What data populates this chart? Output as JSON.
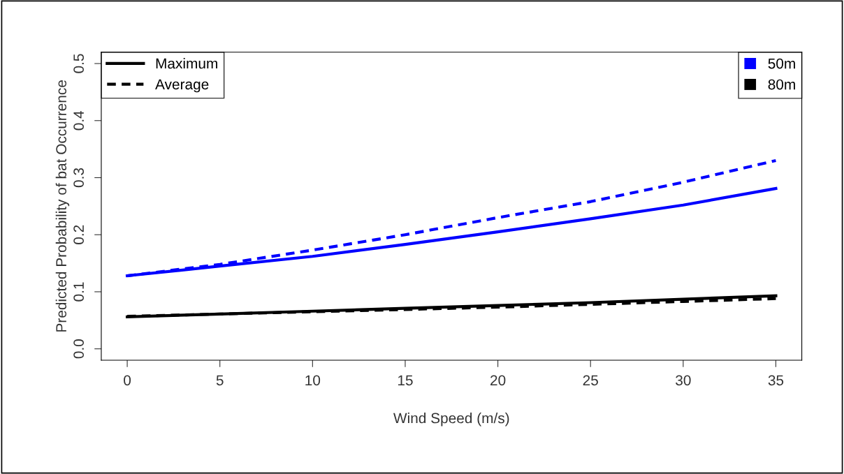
{
  "chart_data": {
    "type": "line",
    "xlabel": "Wind Speed (m/s)",
    "ylabel": "Predicted Probability of bat Occurrence",
    "x": [
      0,
      5,
      10,
      15,
      20,
      25,
      30,
      35
    ],
    "series": [
      {
        "name": "50m",
        "color": "#0000ff",
        "line_style": "solid",
        "values": [
          0.128,
          0.145,
          0.162,
          0.183,
          0.205,
          0.228,
          0.252,
          0.281
        ]
      },
      {
        "color": "#0000ff",
        "line_style": "dashed",
        "values": [
          0.128,
          0.148,
          0.173,
          0.2,
          0.23,
          0.258,
          0.292,
          0.33
        ]
      },
      {
        "name": "80m",
        "color": "#000000",
        "line_style": "solid",
        "values": [
          0.056,
          0.061,
          0.066,
          0.071,
          0.076,
          0.081,
          0.087,
          0.093
        ]
      },
      {
        "color": "#000000",
        "line_style": "dashed",
        "values": [
          0.057,
          0.061,
          0.065,
          0.069,
          0.073,
          0.078,
          0.083,
          0.088
        ]
      }
    ],
    "annotations": [
      "Maximum",
      "Average"
    ],
    "legend": "top right",
    "grid": false,
    "xlim": [
      -1.4,
      36.4
    ],
    "ylim": [
      -0.02,
      0.52
    ],
    "xticks": [
      0,
      5,
      10,
      15,
      20,
      25,
      30,
      35
    ],
    "yticks": [
      {
        "value": 0.0,
        "label": "0.0"
      },
      0.1,
      0.2,
      0.3,
      0.4,
      0.5
    ]
  }
}
